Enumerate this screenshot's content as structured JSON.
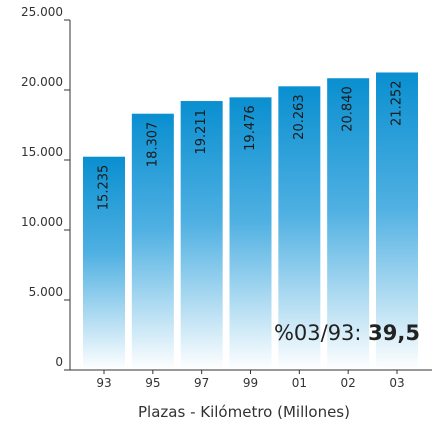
{
  "chart_data": {
    "type": "bar",
    "categories": [
      "93",
      "95",
      "97",
      "99",
      "01",
      "02",
      "03"
    ],
    "values": [
      15235,
      18307,
      19211,
      19476,
      20263,
      20840,
      21252
    ],
    "data_labels": [
      "15.235",
      "18.307",
      "19.211",
      "19.476",
      "20.263",
      "20.840",
      "21.252"
    ],
    "xlabel": "Plazas - Kilómetro (Millones)",
    "ylabel": "",
    "title": "",
    "ylim": [
      0,
      25000
    ],
    "yticks": [
      0,
      5000,
      10000,
      15000,
      20000,
      25000
    ],
    "ytick_labels": [
      "0",
      "5.000",
      "10.000",
      "15.000",
      "20.000",
      "25.000"
    ],
    "grid": false,
    "bar_color_top": "#0a8fd0",
    "bar_color_bottom": "#ffffff",
    "annotation": {
      "prefix": "%03/93: ",
      "value": "39,5"
    }
  }
}
